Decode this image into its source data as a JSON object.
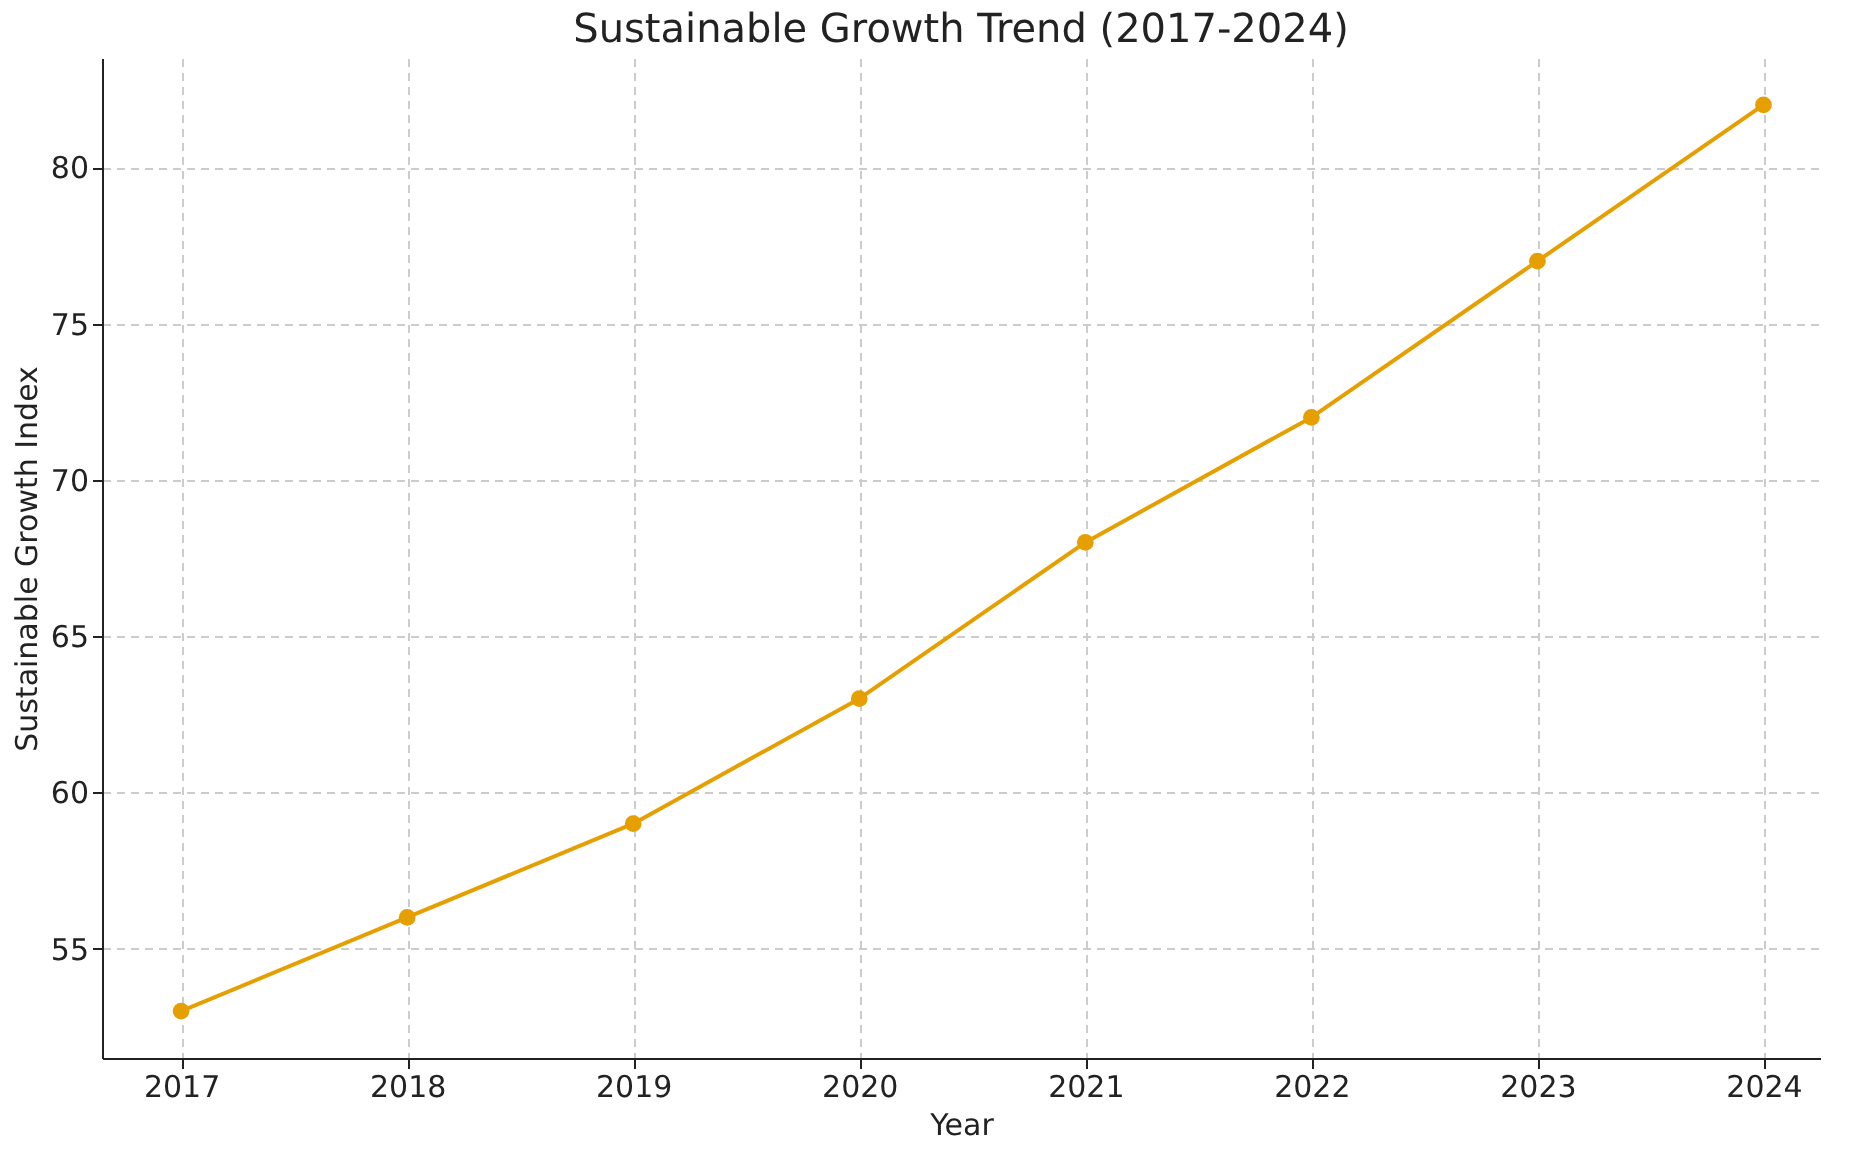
{
  "chart_data": {
    "type": "line",
    "title": "Sustainable Growth Trend (2017-2024)",
    "xlabel": "Year",
    "ylabel": "Sustainable Growth Index",
    "x": [
      2017,
      2018,
      2019,
      2020,
      2021,
      2022,
      2023,
      2024
    ],
    "series": [
      {
        "color": "#e69f00",
        "values": [
          53,
          56,
          59,
          63,
          68,
          72,
          77,
          82
        ]
      }
    ],
    "xlim": [
      2016.65,
      2024.25
    ],
    "xticks": [
      2017,
      2018,
      2019,
      2020,
      2021,
      2022,
      2023,
      2024
    ],
    "ylim": [
      51.5,
      83.5
    ],
    "yticks": [
      55,
      60,
      65,
      70,
      75,
      80
    ],
    "grid": true,
    "marker": "circle",
    "line_style": "solid"
  }
}
